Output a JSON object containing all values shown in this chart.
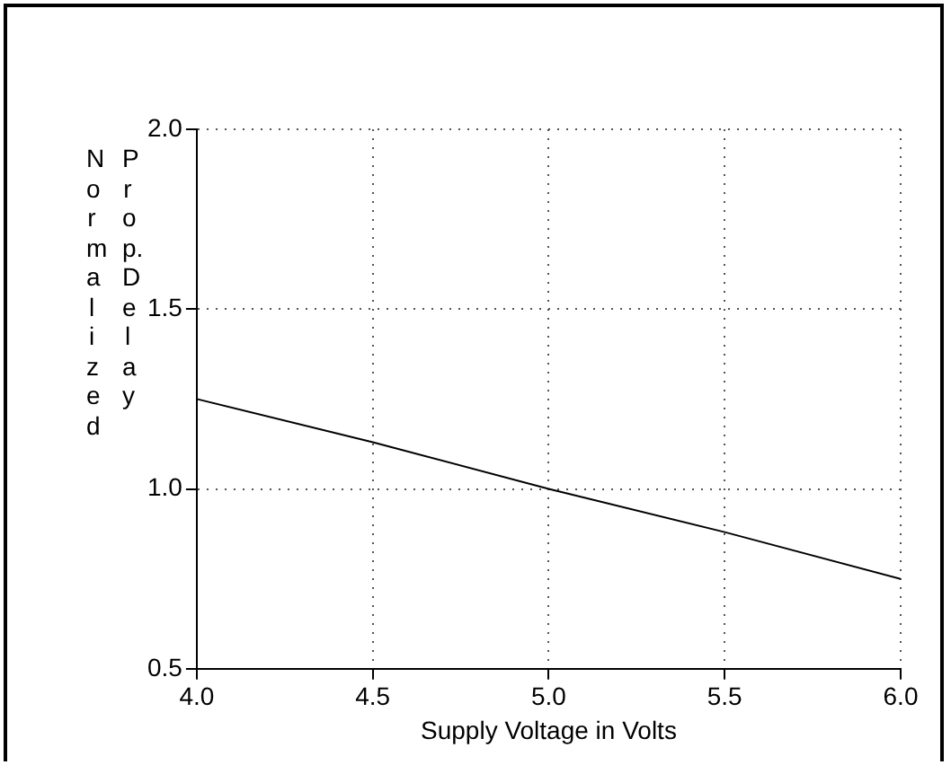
{
  "chart_data": {
    "type": "line",
    "xlabel": "Supply Voltage in Volts",
    "ylabel": "Normalized Prop.Delay",
    "x": [
      4.0,
      4.5,
      5.0,
      5.5,
      6.0
    ],
    "series": [
      {
        "color": "#000000",
        "values": [
          1.25,
          1.13,
          1.0,
          0.88,
          0.75
        ]
      }
    ],
    "xlim": [
      4.0,
      6.0
    ],
    "xticks": [
      {
        "value": 4.0,
        "label": "4.0"
      },
      {
        "value": 4.5,
        "label": "4.5"
      },
      {
        "value": 5.0,
        "label": "5.0"
      },
      {
        "value": 5.5,
        "label": "5.5"
      },
      {
        "value": 6.0,
        "label": "6.0"
      }
    ],
    "ylim": [
      0.5,
      2.0
    ],
    "yticks": [
      {
        "value": 0.5,
        "label": "0.5"
      },
      {
        "value": 1.0,
        "label": "1.0"
      },
      {
        "value": 1.5,
        "label": "1.5"
      },
      {
        "value": 2.0,
        "label": "2.0"
      }
    ],
    "grid": true,
    "legend": false,
    "marker": "none",
    "line_style": "solid"
  }
}
